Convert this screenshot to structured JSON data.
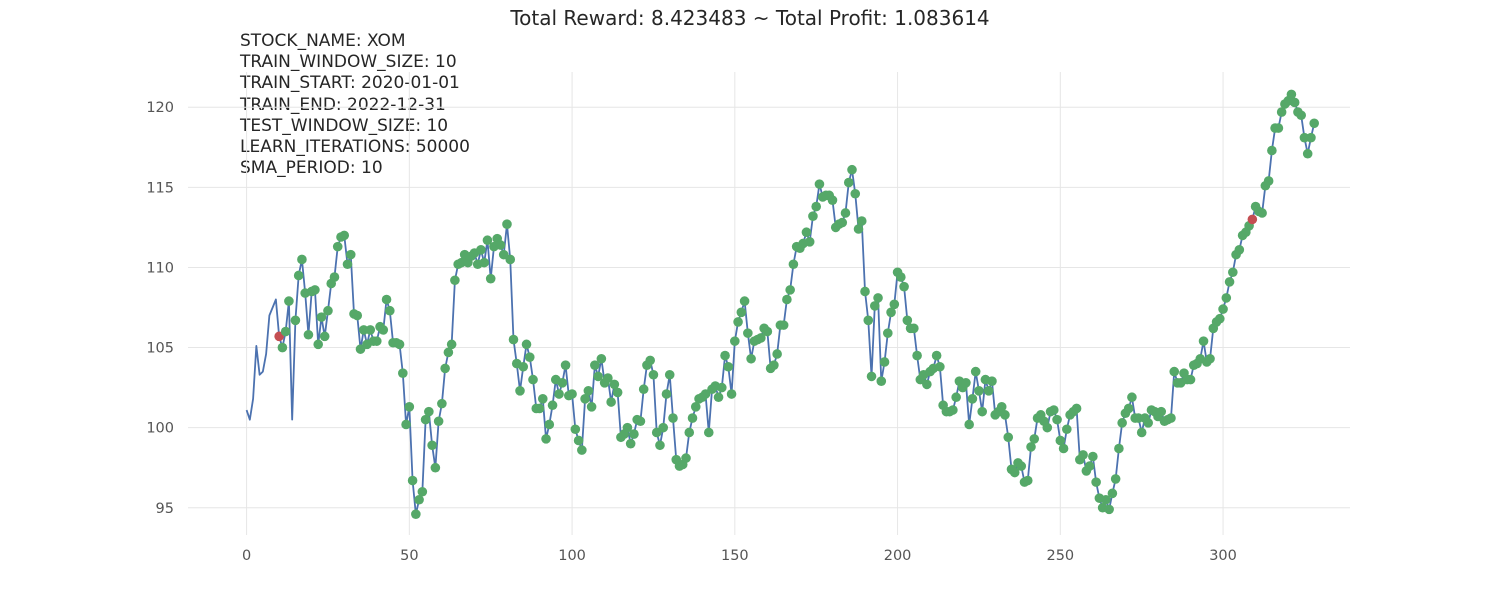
{
  "title": "Total Reward: 8.423483 ~ Total Profit: 1.083614",
  "info_lines": [
    "STOCK_NAME: XOM",
    "TRAIN_WINDOW_SIZE: 10",
    "TRAIN_START: 2020-01-01",
    "TRAIN_END: 2022-12-31",
    "TEST_WINDOW_SIZE: 10",
    "LEARN_ITERATIONS: 50000",
    "SMA_PERIOD: 10"
  ],
  "colors": {
    "line": "#4c72b0",
    "long_marker": "#55a868",
    "short_marker": "#c44e52",
    "grid": "#e6e6e6",
    "background": "#ffffff"
  },
  "chart_data": {
    "type": "line",
    "title": "Total Reward: 8.423483 ~ Total Profit: 1.083614",
    "xlabel": "",
    "ylabel": "",
    "xlim": [
      -18,
      339
    ],
    "ylim": [
      93.3,
      122.2
    ],
    "xticks": [
      0,
      50,
      100,
      150,
      200,
      250,
      300
    ],
    "yticks": [
      95,
      100,
      105,
      110,
      115,
      120
    ],
    "grid": true,
    "legend": "none",
    "series": [
      {
        "x_start": 0,
        "values": [
          101.1,
          100.5,
          101.8,
          105.1,
          103.3,
          103.5,
          104.6,
          107.0,
          107.5,
          108.0,
          105.7,
          105.0,
          106.0,
          107.9,
          100.5,
          106.7,
          109.5,
          110.5,
          108.4,
          105.8,
          108.5,
          108.6,
          105.2,
          106.9,
          105.7,
          107.3,
          109.0,
          109.4,
          111.3,
          111.9,
          112.0,
          110.2,
          110.8,
          107.1,
          107.0,
          104.9,
          106.1,
          105.2,
          106.1,
          105.4,
          105.4,
          106.3,
          106.1,
          108.0,
          107.3,
          105.3,
          105.3,
          105.2,
          103.4,
          100.2,
          101.3,
          96.7,
          94.6,
          95.5,
          96.0,
          100.5,
          101.0,
          98.9,
          97.5,
          100.4,
          101.5,
          103.7,
          104.7,
          105.2,
          109.2,
          110.2,
          110.3,
          110.8,
          110.3,
          110.7,
          110.9,
          110.2,
          111.1,
          110.3,
          111.7,
          109.3,
          111.3,
          111.8,
          111.4,
          110.8,
          112.7,
          110.5,
          105.5,
          104.0,
          102.3,
          103.8,
          105.2,
          104.4,
          103.0,
          101.2,
          101.2,
          101.8,
          99.3,
          100.2,
          101.4,
          103.0,
          102.1,
          102.8,
          103.9,
          102.0,
          102.1,
          99.9,
          99.2,
          98.6,
          101.8,
          102.3,
          101.3,
          103.9,
          103.2,
          104.3,
          102.8,
          103.1,
          101.6,
          102.7,
          102.2,
          99.4,
          99.6,
          100.0,
          99.0,
          99.6,
          100.5,
          100.4,
          102.4,
          103.9,
          104.2,
          103.3,
          99.7,
          98.9,
          100.0,
          102.1,
          103.3,
          100.6,
          98.0,
          97.6,
          97.7,
          98.1,
          99.7,
          100.6,
          101.3,
          101.8,
          101.9,
          102.1,
          99.7,
          102.4,
          102.6,
          101.9,
          102.5,
          104.5,
          103.8,
          102.1,
          105.4,
          106.6,
          107.2,
          107.9,
          105.9,
          104.3,
          105.4,
          105.5,
          105.6,
          106.2,
          106.0,
          103.7,
          103.9,
          104.6,
          106.4,
          106.4,
          108.0,
          108.6,
          110.2,
          111.3,
          111.2,
          111.5,
          112.2,
          111.6,
          113.2,
          113.8,
          115.2,
          114.4,
          114.5,
          114.5,
          114.2,
          112.5,
          112.7,
          112.8,
          113.4,
          115.3,
          116.1,
          114.6,
          112.4,
          112.9,
          108.5,
          106.7,
          103.2,
          107.6,
          108.1,
          102.9,
          104.1,
          105.9,
          107.2,
          107.7,
          109.7,
          109.4,
          108.8,
          106.7,
          106.2,
          106.2,
          104.5,
          103.0,
          103.3,
          102.7,
          103.5,
          103.7,
          104.5,
          103.8,
          101.4,
          101.0,
          101.0,
          101.1,
          101.9,
          102.9,
          102.5,
          102.8,
          100.2,
          101.8,
          103.5,
          102.3,
          101.0,
          103.0,
          102.3,
          102.9,
          100.8,
          101.0,
          101.3,
          100.8,
          99.4,
          97.4,
          97.2,
          97.8,
          97.6,
          96.6,
          96.7,
          98.8,
          99.3,
          100.6,
          100.8,
          100.4,
          100.0,
          101.0,
          101.1,
          100.5,
          99.2,
          98.7,
          99.9,
          100.8,
          101.0,
          101.2,
          98.0,
          98.3,
          97.3,
          97.6,
          98.2,
          96.6,
          95.6,
          95.0,
          95.5,
          94.9,
          95.9,
          96.8,
          98.7,
          100.3,
          100.9,
          101.2,
          101.9,
          100.6,
          100.6,
          99.7,
          100.6,
          100.3,
          101.1,
          101.0,
          100.7,
          101.0,
          100.4,
          100.5,
          100.6,
          103.5,
          102.8,
          102.8,
          103.4,
          103.0,
          103.0,
          103.9,
          104.0,
          104.3,
          105.4,
          104.1,
          104.3,
          106.2,
          106.6,
          106.8,
          107.4,
          108.1,
          109.1,
          109.7,
          110.8,
          111.1,
          112.0,
          112.2,
          112.6,
          113.0,
          113.8,
          113.5,
          113.4,
          115.1,
          115.4,
          117.3,
          118.7,
          118.7,
          119.7,
          120.2,
          120.4,
          120.8,
          120.3,
          119.7,
          119.5,
          118.1,
          117.1,
          118.1,
          119.0
        ]
      }
    ],
    "short_signal_indices": [
      10,
      309
    ]
  }
}
